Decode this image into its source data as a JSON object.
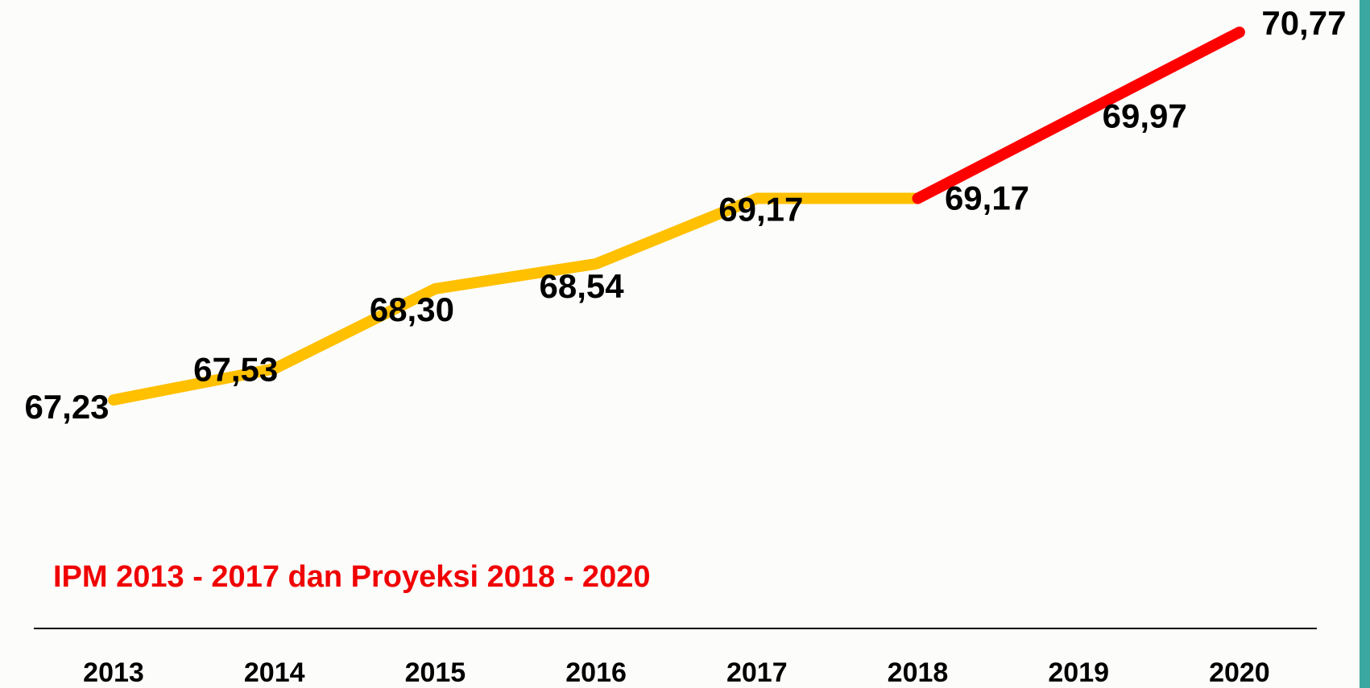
{
  "chart_data": {
    "type": "line",
    "title": "IPM 2013 - 2017 dan Proyeksi 2018 - 2020",
    "categories": [
      "2013",
      "2014",
      "2015",
      "2016",
      "2017",
      "2018",
      "2019",
      "2020"
    ],
    "series": [
      {
        "color": "#ffc000",
        "values": [
          67.23,
          67.53,
          68.3,
          68.54,
          69.17,
          69.17,
          null,
          null
        ],
        "value_labels": [
          "67,23",
          "67,53",
          "68,30",
          "68,54",
          "69,17",
          null,
          null,
          null
        ]
      },
      {
        "color": "#ff0000",
        "values": [
          null,
          null,
          null,
          null,
          null,
          69.17,
          69.97,
          70.77
        ],
        "value_labels": [
          null,
          null,
          null,
          null,
          null,
          "69,17",
          "69,97",
          "70,77"
        ]
      }
    ]
  }
}
